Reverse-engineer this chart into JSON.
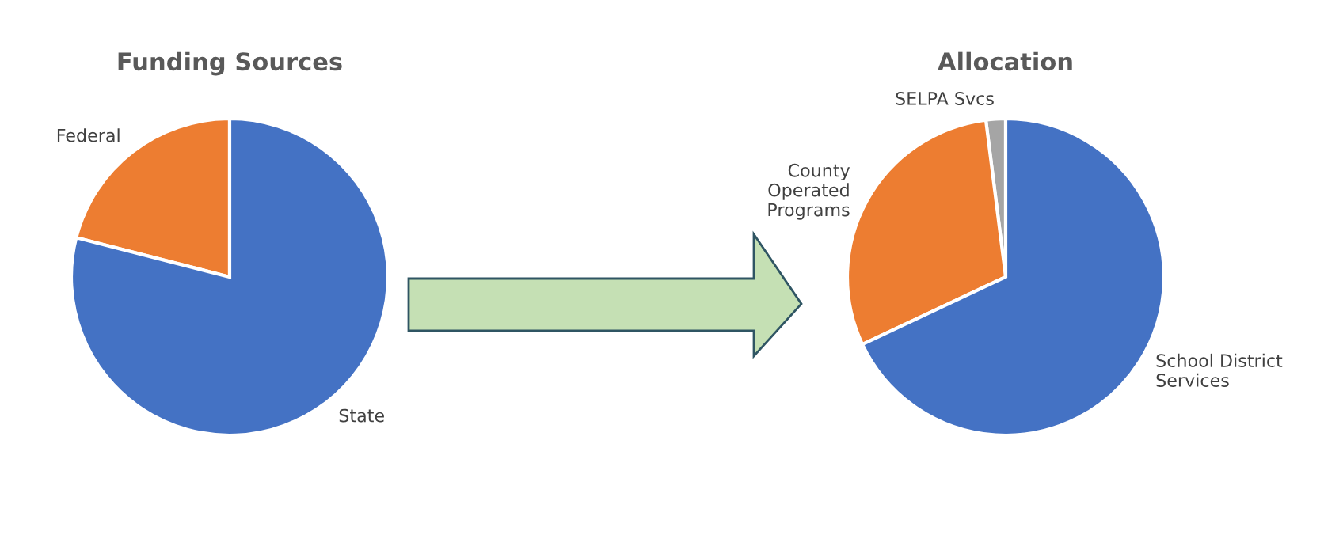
{
  "chart_data": [
    {
      "type": "pie",
      "title": "Funding Sources",
      "categories": [
        "Federal",
        "State"
      ],
      "values": [
        21,
        79
      ],
      "colors": [
        "#ed7d31",
        "#4472c4"
      ]
    },
    {
      "type": "pie",
      "title": "Allocation",
      "categories": [
        "SELPA Svcs",
        "County\nOperated\nPrograms",
        "School District\nServices"
      ],
      "values": [
        2,
        30,
        68
      ],
      "colors": [
        "#a5a5a5",
        "#ed7d31",
        "#4472c4"
      ]
    }
  ]
}
